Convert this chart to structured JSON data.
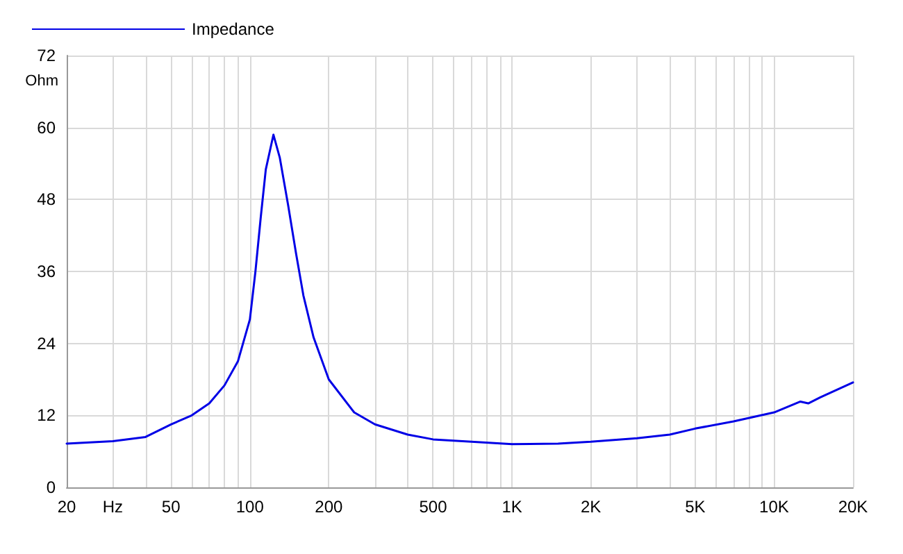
{
  "chart_data": {
    "type": "line",
    "ylabel": "Ohm",
    "log": "x",
    "grid": true,
    "legend": "top left",
    "marker": "none",
    "line_style": "solid",
    "x": [
      20,
      30,
      40,
      50,
      60,
      70,
      80,
      90,
      100,
      105,
      110,
      115,
      123,
      130,
      140,
      150,
      160,
      175,
      200,
      250,
      300,
      400,
      500,
      700,
      1000,
      1500,
      2000,
      3000,
      4000,
      5000,
      7000,
      10000,
      12600,
      13500,
      15000,
      20000
    ],
    "series": [
      {
        "name": "Impedance",
        "color": "#0000e6",
        "values": [
          7.3,
          7.7,
          8.4,
          10.5,
          12,
          14,
          17,
          21,
          28,
          36,
          45,
          53,
          58.8,
          55,
          47,
          39,
          32,
          25,
          18,
          12.5,
          10.5,
          8.8,
          8,
          7.6,
          7.2,
          7.3,
          7.6,
          8.2,
          8.8,
          9.8,
          11,
          12.5,
          14.3,
          14,
          15,
          17.5
        ]
      }
    ],
    "xlim": [
      20,
      20000
    ],
    "xticks": [
      20,
      {
        "value": 30,
        "label": "Hz"
      },
      {
        "value": 40,
        "label": null
      },
      50,
      {
        "value": 60,
        "label": null
      },
      {
        "value": 70,
        "label": null
      },
      {
        "value": 80,
        "label": null
      },
      {
        "value": 90,
        "label": null
      },
      100,
      200,
      {
        "value": 300,
        "label": null
      },
      {
        "value": 400,
        "label": null
      },
      500,
      {
        "value": 600,
        "label": null
      },
      {
        "value": 700,
        "label": null
      },
      {
        "value": 800,
        "label": null
      },
      {
        "value": 900,
        "label": null
      },
      {
        "value": 1000,
        "label": "1K"
      },
      {
        "value": 2000,
        "label": "2K"
      },
      {
        "value": 3000,
        "label": null
      },
      {
        "value": 4000,
        "label": null
      },
      {
        "value": 5000,
        "label": "5K"
      },
      {
        "value": 6000,
        "label": null
      },
      {
        "value": 7000,
        "label": null
      },
      {
        "value": 8000,
        "label": null
      },
      {
        "value": 9000,
        "label": null
      },
      {
        "value": 10000,
        "label": "10K"
      },
      {
        "value": 20000,
        "label": "20K"
      }
    ],
    "ylim": [
      0,
      72
    ],
    "yticks": [
      0,
      12,
      24,
      36,
      48,
      60,
      72
    ]
  }
}
